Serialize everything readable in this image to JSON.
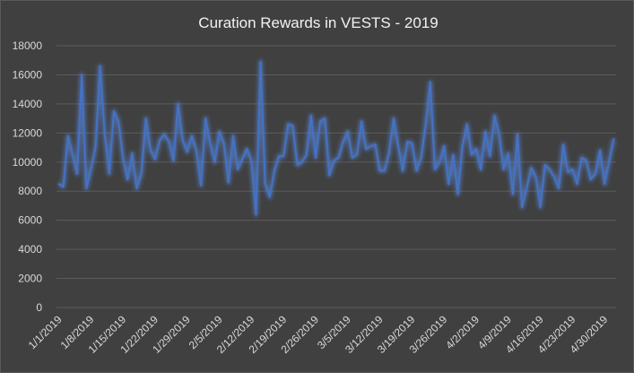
{
  "chart_data": {
    "type": "line",
    "title": "Curation Rewards in VESTS - 2019",
    "xlabel": "",
    "ylabel": "",
    "ylim": [
      0,
      18000
    ],
    "y_ticks": [
      "0",
      "2000",
      "4000",
      "6000",
      "8000",
      "10000",
      "12000",
      "14000",
      "16000",
      "18000"
    ],
    "x_start": "2019-01-01",
    "x_tick_labels": [
      "1/1/2019",
      "1/8/2019",
      "1/15/2019",
      "1/22/2019",
      "1/29/2019",
      "2/5/2019",
      "2/12/2019",
      "2/19/2019",
      "2/26/2019",
      "3/5/2019",
      "3/12/2019",
      "3/19/2019",
      "3/26/2019",
      "4/2/2019",
      "4/9/2019",
      "4/16/2019",
      "4/23/2019",
      "4/30/2019"
    ],
    "grid": true,
    "legend": "none",
    "colors": {
      "line": "#4472c4",
      "glow": "#5b8de8",
      "background": "#404040",
      "grid": "#5b5b5b",
      "text": "#d9d9d9"
    },
    "series": [
      {
        "values": [
          8500,
          8300,
          11800,
          10500,
          9200,
          16000,
          8200,
          9500,
          11000,
          16600,
          12000,
          9200,
          13500,
          12800,
          10300,
          8800,
          10600,
          8200,
          9200,
          13000,
          10800,
          10200,
          11500,
          11900,
          11400,
          10100,
          14000,
          11500,
          10700,
          11800,
          10800,
          8400,
          13000,
          11300,
          10000,
          12100,
          11300,
          8600,
          11800,
          9500,
          10200,
          10900,
          10100,
          6400,
          16900,
          8500,
          7600,
          9400,
          10400,
          10400,
          12600,
          12500,
          9800,
          10000,
          10500,
          13200,
          10300,
          12800,
          13000,
          9100,
          10100,
          10300,
          11400,
          12100,
          10300,
          10500,
          12800,
          10900,
          11100,
          11200,
          9400,
          9400,
          10600,
          13000,
          11100,
          9400,
          11400,
          11300,
          9400,
          10300,
          12600,
          15500,
          9500,
          10000,
          11100,
          8500,
          10500,
          7800,
          11100,
          12600,
          10500,
          10900,
          9500,
          12100,
          10400,
          13200,
          11900,
          9500,
          10600,
          7800,
          11900,
          6900,
          8200,
          9600,
          9000,
          6900,
          9800,
          9500,
          9000,
          8200,
          11200,
          9300,
          9500,
          8500,
          10300,
          10100,
          8800,
          9200,
          10800,
          8500,
          10100,
          11600
        ]
      }
    ]
  }
}
